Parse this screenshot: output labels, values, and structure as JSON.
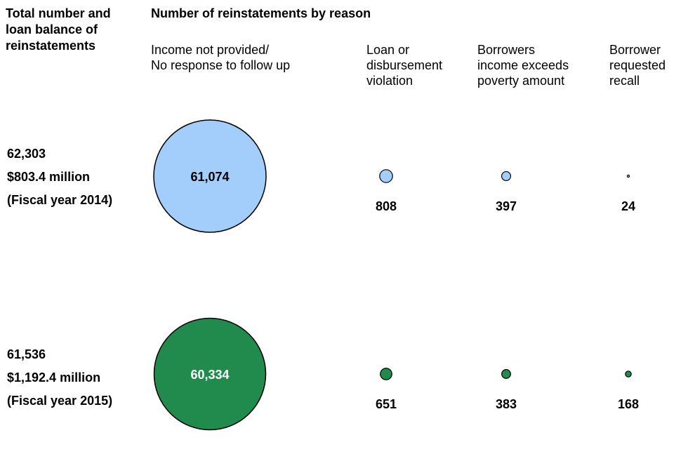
{
  "chart_data": {
    "type": "bubble",
    "title": "Number of reinstatements by reason",
    "row_header": "Total number and loan balance of reinstatements",
    "categories": [
      "Income not provided/ No response to follow up",
      "Loan or disbursement violation",
      "Borrowers income exceeds poverty amount",
      "Borrower requested recall"
    ],
    "category_lines": [
      [
        "Income not provided/",
        "No response to follow up"
      ],
      [
        "Loan or",
        "disbursement",
        "violation"
      ],
      [
        "Borrowers",
        "income exceeds",
        "poverty amount"
      ],
      [
        "Borrower",
        "requested",
        "recall"
      ]
    ],
    "series": [
      {
        "total": "62,303",
        "balance": "$803.4 million",
        "period": "(Fiscal year 2014)",
        "color": "#a3cdfb",
        "values": [
          61074,
          808,
          397,
          24
        ],
        "labels": [
          "61,074",
          "808",
          "397",
          "24"
        ]
      },
      {
        "total": "61,536",
        "balance": "$1,192.4 million",
        "period": "(Fiscal year 2015)",
        "color": "#208b4c",
        "values": [
          60334,
          651,
          383,
          168
        ],
        "labels": [
          "60,334",
          "651",
          "383",
          "168"
        ]
      }
    ]
  }
}
